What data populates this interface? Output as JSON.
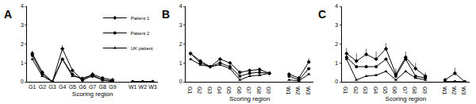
{
  "chart_data": [
    {
      "type": "line",
      "title": "A",
      "x_label": "Scoring region",
      "legend": "top right",
      "categories": [
        "G1",
        "G2",
        "G3",
        "G4",
        "G5",
        "G6",
        "G7",
        "G8",
        "G9",
        null,
        "W1",
        "W2",
        "W3"
      ],
      "ylim": [
        0,
        4
      ],
      "yticks": [
        0,
        1,
        2,
        3,
        4
      ],
      "series": [
        {
          "name": "Patient 1",
          "color": "#000000",
          "marker": "diamond",
          "values": [
            1.5,
            0.5,
            0,
            1.75,
            0.6,
            0.1,
            0.4,
            0.2,
            0.1,
            null,
            0,
            0,
            0
          ],
          "errors": [
            0.15,
            null,
            null,
            0.2,
            null,
            null,
            null,
            null,
            null,
            null,
            null,
            null,
            null
          ]
        },
        {
          "name": "Patient 2",
          "color": "#000000",
          "marker": "circle",
          "values": [
            1.4,
            0.4,
            0,
            1.2,
            0.4,
            0.1,
            0.3,
            0.1,
            0.05,
            null,
            0,
            0,
            0
          ],
          "errors": [
            null,
            null,
            null,
            null,
            null,
            null,
            null,
            null,
            null,
            null,
            null,
            null,
            null
          ]
        },
        {
          "name": "UK patient",
          "color": "#000000",
          "marker": "triangle-up",
          "values": [
            1.2,
            0.3,
            0,
            1.2,
            0.3,
            0.2,
            0.35,
            0.1,
            0,
            null,
            0,
            0,
            0
          ],
          "errors": [
            null,
            null,
            null,
            null,
            null,
            null,
            null,
            null,
            null,
            null,
            null,
            null,
            null
          ]
        }
      ]
    },
    {
      "type": "line",
      "title": "B",
      "x_label": "Scoring region",
      "categories": [
        "G1",
        "G2",
        "G3",
        "G4",
        "G5",
        "G6",
        "G7",
        "G8",
        "G9",
        null,
        "W1",
        "W2",
        "W3"
      ],
      "ylim": [
        0,
        4
      ],
      "yticks": [
        0,
        1,
        2,
        3,
        4
      ],
      "series": [
        {
          "name": "Patient 1",
          "color": "#000000",
          "marker": "diamond",
          "values": [
            1.5,
            1.1,
            0.8,
            1.2,
            1.0,
            0.5,
            0.6,
            0.65,
            0.45,
            null,
            0.4,
            0.2,
            1.05
          ],
          "errors": [
            0.1,
            null,
            null,
            0.1,
            0.1,
            null,
            null,
            null,
            null,
            null,
            null,
            null,
            0.2
          ]
        },
        {
          "name": "Patient 2",
          "color": "#000000",
          "marker": "circle",
          "values": [
            1.5,
            1.0,
            0.8,
            1.0,
            0.8,
            0.3,
            0.45,
            0.5,
            0.45,
            null,
            0.3,
            0.1,
            0.7
          ],
          "errors": [
            null,
            null,
            null,
            null,
            null,
            null,
            null,
            null,
            null,
            null,
            null,
            null,
            null
          ]
        },
        {
          "name": "UK patient",
          "color": "#000000",
          "marker": "triangle-up",
          "values": [
            1.2,
            0.9,
            0.8,
            0.9,
            0.7,
            0.1,
            0.3,
            0.35,
            0.45,
            null,
            0.1,
            0.05,
            0.4
          ],
          "errors": [
            null,
            null,
            null,
            null,
            null,
            null,
            null,
            null,
            null,
            null,
            null,
            null,
            null
          ]
        }
      ]
    },
    {
      "type": "line",
      "title": "C",
      "x_label": "Scoring region",
      "categories": [
        "G1",
        "G2",
        "G3",
        "G4",
        "G5",
        "G6",
        "G7",
        "G8",
        "G9",
        null,
        "W1",
        "W2",
        "W3"
      ],
      "ylim": [
        0,
        4
      ],
      "yticks": [
        0,
        1,
        2,
        3,
        4
      ],
      "series": [
        {
          "name": "Patient 1",
          "color": "#000000",
          "marker": "diamond",
          "values": [
            1.5,
            1.1,
            1.45,
            1.2,
            1.75,
            0.4,
            1.3,
            0.7,
            0.3,
            null,
            0.1,
            0.45,
            0
          ],
          "errors": [
            0.3,
            0.4,
            0.3,
            0.4,
            0.3,
            0.3,
            0.3,
            0.3,
            0.2,
            null,
            null,
            0.3,
            null
          ]
        },
        {
          "name": "Patient 2",
          "color": "#000000",
          "marker": "circle",
          "values": [
            1.3,
            0.8,
            0.8,
            0.8,
            1.2,
            0.3,
            1.2,
            0.3,
            0.2,
            null,
            0,
            0,
            0
          ],
          "errors": [
            0.2,
            null,
            null,
            null,
            null,
            null,
            0.2,
            null,
            null,
            null,
            null,
            null,
            null
          ]
        },
        {
          "name": "UK patient",
          "color": "#000000",
          "marker": "triangle-up",
          "values": [
            1.2,
            0.1,
            0.3,
            0.35,
            0.55,
            0.1,
            0.55,
            0.2,
            0.1,
            null,
            0,
            0,
            0
          ],
          "errors": [
            null,
            null,
            null,
            null,
            null,
            null,
            null,
            null,
            null,
            null,
            null,
            null,
            null
          ]
        }
      ]
    }
  ]
}
